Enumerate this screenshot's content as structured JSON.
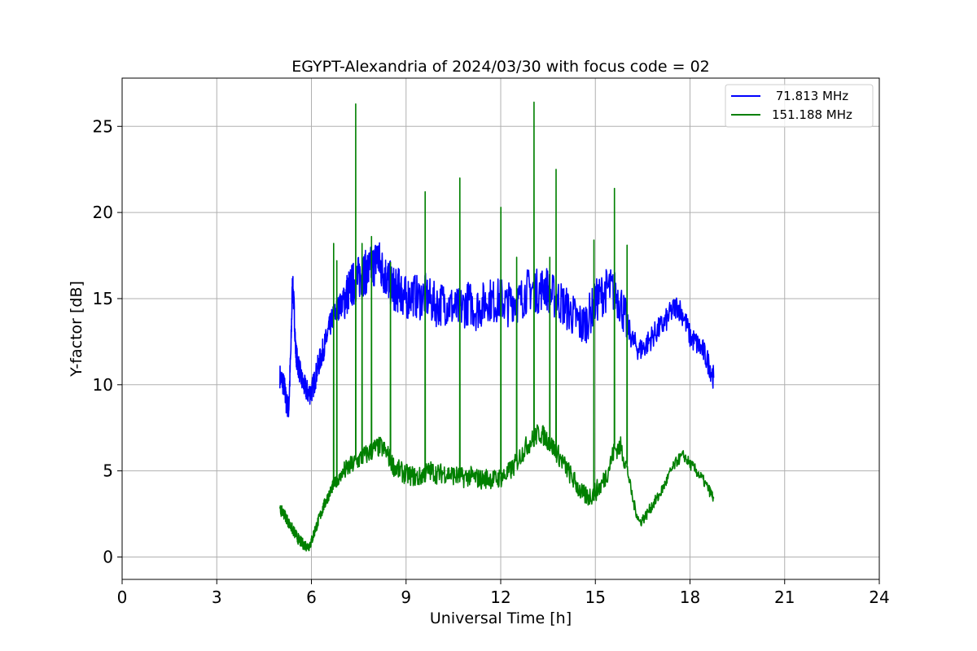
{
  "chart_data": {
    "type": "line",
    "title": "EGYPT-Alexandria of 2024/03/30 with focus code = 02",
    "xlabel": "Universal Time [h]",
    "ylabel": "Y-factor [dB]",
    "xlim": [
      0,
      24
    ],
    "ylim": [
      -1.3,
      27.8
    ],
    "xticks": [
      0,
      3,
      6,
      9,
      12,
      15,
      18,
      21,
      24
    ],
    "yticks": [
      0,
      5,
      10,
      15,
      20,
      25
    ],
    "grid": true,
    "legend": "top-right",
    "series": [
      {
        "name": " 71.813 MHz",
        "color": "#0000ff",
        "x": [
          5.0,
          5.08,
          5.15,
          5.2,
          5.28,
          5.35,
          5.4,
          5.45,
          5.5,
          5.55,
          5.6,
          5.7,
          5.8,
          5.9,
          6.0,
          6.1,
          6.2,
          6.3,
          6.4,
          6.5,
          6.6,
          6.7,
          6.8,
          6.9,
          7.0,
          7.1,
          7.2,
          7.3,
          7.4,
          7.5,
          7.6,
          7.7,
          7.8,
          7.9,
          8.0,
          8.1,
          8.2,
          8.3,
          8.4,
          8.5,
          8.6,
          8.7,
          8.8,
          8.9,
          9.0,
          9.2,
          9.4,
          9.6,
          9.8,
          10.0,
          10.2,
          10.4,
          10.6,
          10.8,
          11.0,
          11.2,
          11.4,
          11.6,
          11.8,
          12.0,
          12.2,
          12.4,
          12.6,
          12.8,
          13.0,
          13.2,
          13.4,
          13.6,
          13.8,
          14.0,
          14.2,
          14.4,
          14.6,
          14.8,
          15.0,
          15.2,
          15.4,
          15.6,
          15.8,
          16.0,
          16.2,
          16.4,
          16.6,
          16.8,
          17.0,
          17.2,
          17.4,
          17.6,
          17.8,
          18.0,
          18.2,
          18.4,
          18.6,
          18.75
        ],
        "y": [
          10.5,
          10.2,
          9.8,
          9.0,
          8.6,
          12.0,
          16.0,
          14.5,
          12.0,
          11.4,
          11.0,
          10.2,
          9.8,
          9.5,
          9.6,
          10.2,
          11.0,
          11.6,
          12.2,
          12.8,
          13.5,
          14.0,
          14.3,
          14.6,
          14.8,
          15.2,
          15.5,
          15.8,
          16.0,
          16.2,
          16.4,
          16.5,
          16.6,
          16.8,
          17.0,
          17.5,
          16.8,
          16.5,
          16.2,
          15.9,
          15.6,
          15.4,
          15.6,
          15.2,
          15.0,
          15.3,
          15.0,
          15.2,
          14.8,
          14.6,
          14.8,
          14.6,
          14.3,
          14.5,
          14.8,
          14.4,
          14.6,
          15.0,
          14.8,
          15.0,
          14.6,
          15.0,
          14.8,
          15.4,
          15.6,
          15.4,
          15.8,
          15.2,
          15.0,
          14.6,
          14.2,
          13.8,
          13.4,
          14.0,
          14.8,
          15.2,
          15.6,
          15.4,
          14.8,
          13.5,
          12.5,
          12.0,
          12.3,
          12.8,
          13.2,
          13.6,
          14.2,
          14.6,
          14.0,
          12.8,
          12.4,
          12.0,
          11.2,
          10.4
        ]
      },
      {
        "name": "151.188 MHz",
        "color": "#008000",
        "x": [
          5.0,
          5.1,
          5.2,
          5.3,
          5.4,
          5.5,
          5.6,
          5.7,
          5.8,
          5.9,
          6.0,
          6.1,
          6.2,
          6.3,
          6.4,
          6.5,
          6.6,
          6.7,
          6.8,
          6.9,
          7.0,
          7.2,
          7.4,
          7.6,
          7.8,
          8.0,
          8.2,
          8.4,
          8.6,
          8.8,
          9.0,
          9.2,
          9.4,
          9.6,
          9.8,
          10.0,
          10.2,
          10.4,
          10.6,
          10.8,
          11.0,
          11.2,
          11.4,
          11.6,
          11.8,
          12.0,
          12.2,
          12.4,
          12.6,
          12.8,
          13.0,
          13.2,
          13.4,
          13.6,
          13.8,
          14.0,
          14.2,
          14.4,
          14.6,
          14.8,
          15.0,
          15.2,
          15.4,
          15.6,
          15.8,
          16.0,
          16.2,
          16.4,
          16.6,
          16.8,
          17.0,
          17.2,
          17.4,
          17.6,
          17.8,
          18.0,
          18.2,
          18.4,
          18.6,
          18.75
        ],
        "y": [
          2.7,
          2.6,
          2.3,
          1.9,
          1.6,
          1.3,
          1.0,
          0.8,
          0.7,
          0.6,
          0.9,
          1.5,
          2.0,
          2.5,
          3.0,
          3.4,
          3.8,
          4.2,
          4.4,
          4.6,
          4.9,
          5.2,
          5.5,
          5.8,
          6.0,
          6.3,
          6.4,
          6.0,
          5.3,
          5.0,
          4.8,
          4.7,
          4.6,
          4.9,
          5.0,
          4.8,
          4.9,
          4.8,
          4.7,
          4.6,
          4.7,
          4.6,
          4.5,
          4.6,
          4.5,
          4.6,
          4.8,
          5.2,
          5.8,
          6.4,
          6.8,
          7.2,
          7.0,
          6.5,
          6.0,
          5.4,
          4.8,
          4.2,
          3.6,
          3.5,
          3.8,
          4.2,
          5.0,
          6.2,
          6.4,
          5.2,
          3.2,
          2.0,
          2.4,
          3.0,
          3.5,
          4.2,
          5.0,
          5.6,
          5.9,
          5.4,
          5.0,
          4.5,
          3.9,
          3.4
        ],
        "spikes": [
          [
            6.7,
            18.2
          ],
          [
            6.8,
            17.2
          ],
          [
            7.4,
            26.3
          ],
          [
            7.6,
            18.2
          ],
          [
            7.9,
            18.6
          ],
          [
            8.5,
            17.1
          ],
          [
            9.6,
            21.2
          ],
          [
            10.7,
            22.0
          ],
          [
            12.0,
            20.3
          ],
          [
            12.5,
            17.4
          ],
          [
            13.05,
            26.4
          ],
          [
            13.55,
            17.4
          ],
          [
            13.75,
            22.5
          ],
          [
            14.95,
            18.4
          ],
          [
            15.6,
            21.4
          ],
          [
            16.0,
            18.1
          ]
        ]
      }
    ]
  }
}
